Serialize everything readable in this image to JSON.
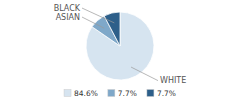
{
  "chart_data": {
    "type": "pie",
    "categories": [
      "WHITE",
      "ASIAN",
      "BLACK"
    ],
    "values": [
      84.6,
      7.7,
      7.7
    ],
    "value_labels": [
      "84.6%",
      "7.7%",
      "7.7%"
    ],
    "colors": [
      "#d6e4f0",
      "#7fa8c9",
      "#2d5f8a"
    ],
    "legend": "bottom"
  }
}
